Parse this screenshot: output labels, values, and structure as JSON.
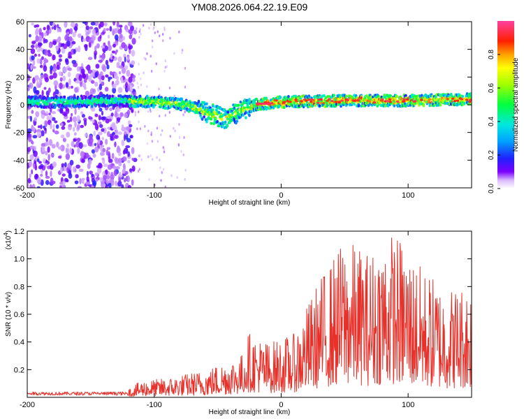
{
  "title": "YM08.2026.064.22.19.E09",
  "chart_data": [
    {
      "type": "heatmap",
      "name": "spectrogram",
      "xlabel": "Height of straight line (km)",
      "ylabel": "Frequency (Hz)",
      "xlim": [
        -200,
        150
      ],
      "ylim": [
        -60,
        60
      ],
      "xticks": [
        -200,
        -100,
        0,
        100
      ],
      "yticks": [
        -60,
        -40,
        -20,
        0,
        20,
        40,
        60
      ],
      "colorbar": {
        "label": "Normalized spectral amplitude",
        "range": [
          0,
          1
        ],
        "ticks": [
          0.0,
          0.2,
          0.4,
          0.6,
          0.8
        ]
      },
      "ridge": [
        {
          "x": -170,
          "y": 2
        },
        {
          "x": -130,
          "y": 3
        },
        {
          "x": -100,
          "y": 2
        },
        {
          "x": -75,
          "y": 0
        },
        {
          "x": -60,
          "y": -5
        },
        {
          "x": -45,
          "y": -10
        },
        {
          "x": -35,
          "y": -6
        },
        {
          "x": -20,
          "y": 0
        },
        {
          "x": 0,
          "y": 2
        },
        {
          "x": 50,
          "y": 3
        },
        {
          "x": 100,
          "y": 3
        },
        {
          "x": 150,
          "y": 4
        }
      ]
    },
    {
      "type": "line",
      "name": "snr",
      "xlabel": "Height of straight line (km)",
      "ylabel": "SNR (10 * v/v)",
      "yscale_label": "(x10",
      "yscale_exp": "4",
      "xlim": [
        -200,
        150
      ],
      "ylim": [
        0,
        1.2
      ],
      "xticks": [
        -200,
        -100,
        0,
        100
      ],
      "yticks": [
        0.2,
        0.4,
        0.6,
        0.8,
        1.0,
        1.2
      ],
      "color": "#e8312a",
      "envelope": [
        {
          "x": -200,
          "y": 0.03
        },
        {
          "x": -150,
          "y": 0.03
        },
        {
          "x": -125,
          "y": 0.04
        },
        {
          "x": -110,
          "y": 0.12
        },
        {
          "x": -90,
          "y": 0.14
        },
        {
          "x": -60,
          "y": 0.2
        },
        {
          "x": -30,
          "y": 0.32
        },
        {
          "x": -27,
          "y": 0.48
        },
        {
          "x": -10,
          "y": 0.4
        },
        {
          "x": 10,
          "y": 0.46
        },
        {
          "x": 30,
          "y": 0.86
        },
        {
          "x": 50,
          "y": 1.15
        },
        {
          "x": 70,
          "y": 1.05
        },
        {
          "x": 80,
          "y": 1.18
        },
        {
          "x": 90,
          "y": 1.2
        },
        {
          "x": 110,
          "y": 0.95
        },
        {
          "x": 130,
          "y": 0.8
        },
        {
          "x": 150,
          "y": 0.84
        }
      ]
    }
  ]
}
